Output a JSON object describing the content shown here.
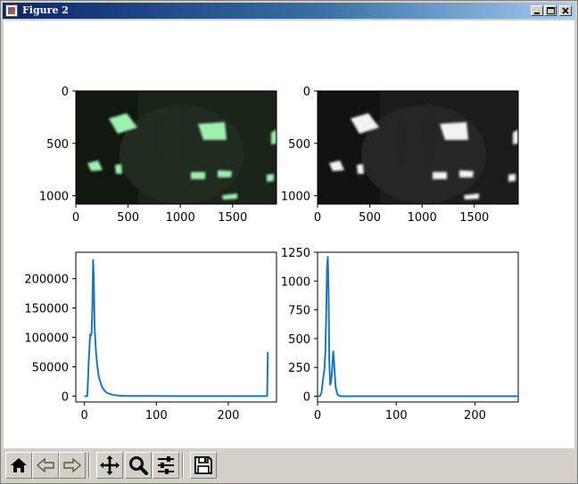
{
  "window": {
    "title": "Figure 2",
    "controls": [
      "minimize",
      "maximize",
      "close"
    ]
  },
  "colors": {
    "line": "#1f77b4",
    "image_tint_left": "#7fe89a",
    "image_tint_right": "#ffffff"
  },
  "toolbar": {
    "buttons": [
      {
        "id": "home",
        "icon": "home-icon"
      },
      {
        "id": "back",
        "icon": "back-arrow-icon"
      },
      {
        "id": "forward",
        "icon": "forward-arrow-icon"
      },
      {
        "id": "pan",
        "icon": "pan-icon"
      },
      {
        "id": "zoom",
        "icon": "zoom-icon"
      },
      {
        "id": "configure",
        "icon": "sliders-icon"
      },
      {
        "id": "save",
        "icon": "save-icon"
      }
    ]
  },
  "chart_data": [
    {
      "type": "image",
      "description": "color photo (green tint) of ceiling lights and a hand",
      "xticks": [
        "0",
        "500",
        "1000",
        "1500"
      ],
      "yticks": [
        "0",
        "500",
        "1000"
      ],
      "xlim": [
        0,
        1920
      ],
      "ylim": [
        1080,
        0
      ]
    },
    {
      "type": "image",
      "description": "grayscale photo of ceiling lights and a hand",
      "xticks": [
        "0",
        "500",
        "1000",
        "1500"
      ],
      "yticks": [
        "0",
        "500",
        "1000"
      ],
      "xlim": [
        0,
        1920
      ],
      "ylim": [
        1080,
        0
      ]
    },
    {
      "type": "line",
      "xticks": [
        "0",
        "100",
        "200"
      ],
      "yticks": [
        "0",
        "50000",
        "100000",
        "150000",
        "200000"
      ],
      "xlim": [
        -12,
        267
      ],
      "ylim": [
        -10000,
        245000
      ],
      "x": [
        0,
        4,
        6,
        8,
        9,
        10,
        11,
        12,
        13,
        14,
        16,
        18,
        20,
        24,
        28,
        32,
        40,
        50,
        60,
        80,
        120,
        200,
        250,
        254,
        255
      ],
      "y": [
        0,
        0,
        60000,
        105000,
        103000,
        107000,
        150000,
        232000,
        200000,
        120000,
        75000,
        50000,
        33000,
        17000,
        9000,
        5000,
        2000,
        700,
        300,
        100,
        50,
        30,
        30,
        100,
        75000
      ]
    },
    {
      "type": "line",
      "xticks": [
        "0",
        "100",
        "200"
      ],
      "yticks": [
        "0",
        "250",
        "500",
        "750",
        "1000",
        "1250"
      ],
      "xlim": [
        0,
        255
      ],
      "ylim": [
        -50,
        1250
      ],
      "x": [
        0,
        3,
        5,
        7,
        8,
        9,
        10,
        11,
        12,
        13,
        14,
        15,
        16,
        17,
        18,
        19,
        20,
        21,
        22,
        23,
        25,
        27,
        30,
        40,
        100,
        255
      ],
      "y": [
        0,
        0,
        30,
        150,
        200,
        250,
        400,
        700,
        1120,
        1210,
        900,
        300,
        100,
        120,
        180,
        300,
        390,
        300,
        180,
        80,
        20,
        5,
        0,
        0,
        0,
        0
      ]
    }
  ]
}
